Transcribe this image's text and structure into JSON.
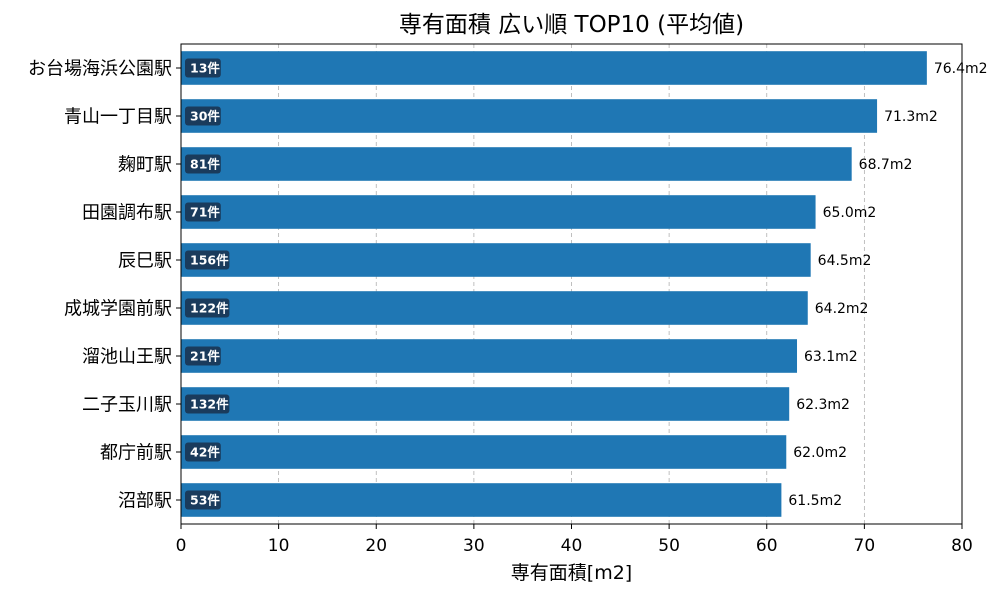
{
  "chart_data": {
    "type": "bar",
    "orientation": "horizontal",
    "title": "専有面積 広い順 TOP10 (平均値)",
    "xlabel": "専有面積[m2]",
    "ylabel": "",
    "xlim": [
      0,
      80
    ],
    "x_ticks": [
      0,
      10,
      20,
      30,
      40,
      50,
      60,
      70,
      80
    ],
    "grid": "x-axis dashed vertical lines",
    "bar_color": "#1f77b4",
    "count_badge_color": "#1a3b5c",
    "categories": [
      "お台場海浜公園駅",
      "青山一丁目駅",
      "麹町駅",
      "田園調布駅",
      "辰巳駅",
      "成城学園前駅",
      "溜池山王駅",
      "二子玉川駅",
      "都庁前駅",
      "沼部駅"
    ],
    "values": [
      76.4,
      71.3,
      68.7,
      65.0,
      64.5,
      64.2,
      63.1,
      62.3,
      62.0,
      61.5
    ],
    "value_labels": [
      "76.4m2",
      "71.3m2",
      "68.7m2",
      "65.0m2",
      "64.5m2",
      "64.2m2",
      "63.1m2",
      "62.3m2",
      "62.0m2",
      "61.5m2"
    ],
    "count_labels": [
      "13件",
      "30件",
      "81件",
      "71件",
      "156件",
      "122件",
      "21件",
      "132件",
      "42件",
      "53件"
    ]
  }
}
